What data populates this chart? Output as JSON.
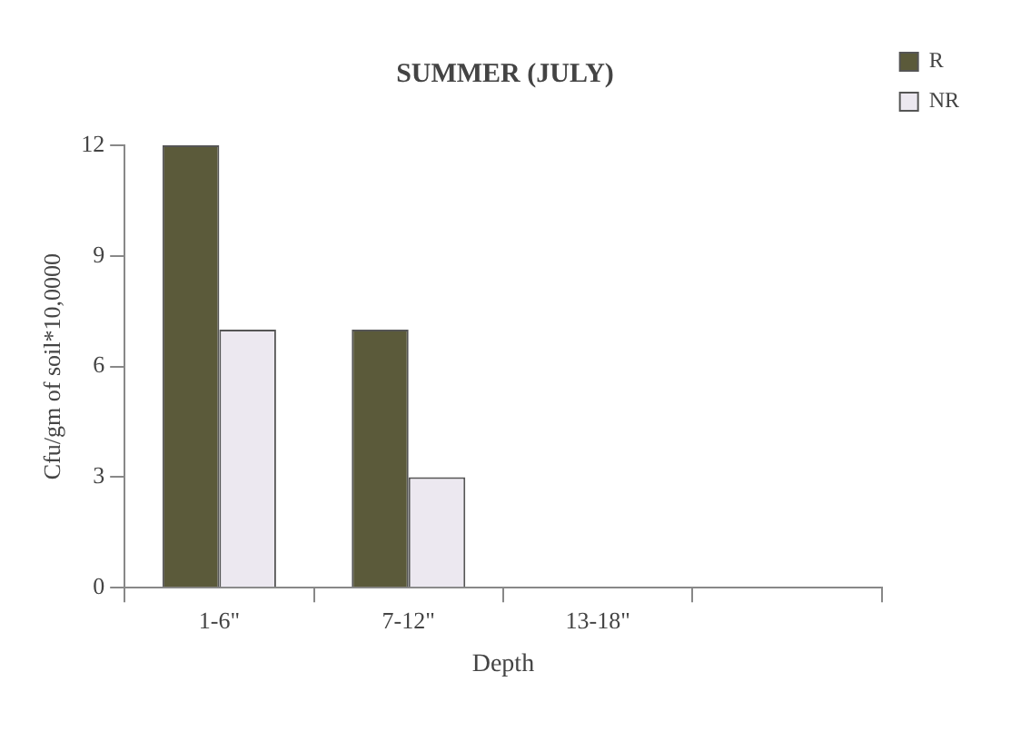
{
  "chart_data": {
    "type": "bar",
    "title": "SUMMER (JULY)",
    "xlabel": "Depth",
    "ylabel": "Cfu/gm of soil*10,0000",
    "categories": [
      "1-6\"",
      "7-12\"",
      "13-18\"",
      null
    ],
    "series": [
      {
        "name": "R",
        "color": "#5b5a3a",
        "values": [
          12,
          7,
          0,
          null
        ]
      },
      {
        "name": "NR",
        "color": "#ece8f0",
        "values": [
          7,
          3,
          0,
          null
        ]
      }
    ],
    "ylim": [
      0,
      12
    ],
    "yticks": [
      0,
      3,
      6,
      9,
      12
    ],
    "grid": false,
    "legend": "top right"
  }
}
